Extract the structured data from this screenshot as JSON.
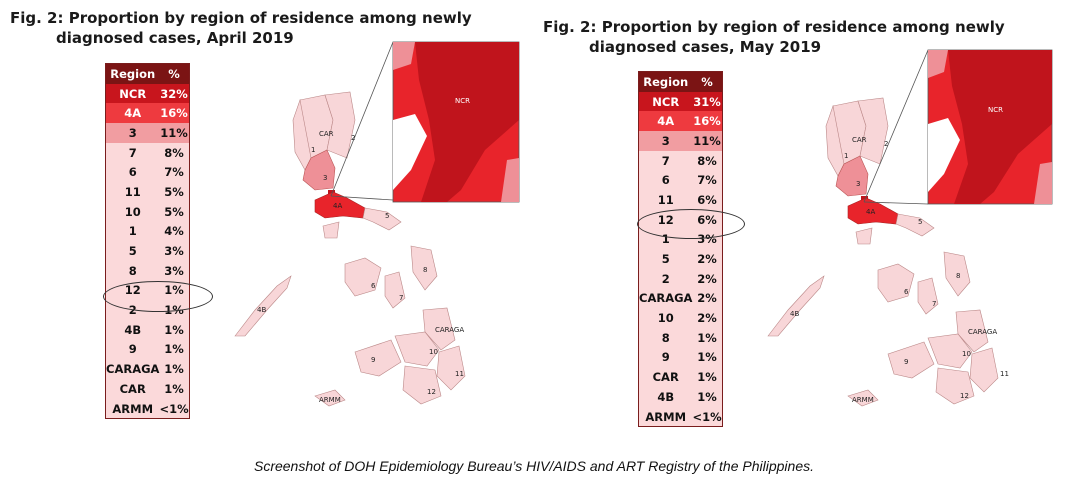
{
  "april": {
    "title_line1": "Fig. 2: Proportion by region of residence among newly",
    "title_line2": "diagnosed cases, April 2019",
    "col_region": "Region",
    "col_pct": "%",
    "rows": [
      {
        "region": "NCR",
        "pct": "32%"
      },
      {
        "region": "4A",
        "pct": "16%"
      },
      {
        "region": "3",
        "pct": "11%"
      },
      {
        "region": "7",
        "pct": "8%"
      },
      {
        "region": "6",
        "pct": "7%"
      },
      {
        "region": "11",
        "pct": "5%"
      },
      {
        "region": "10",
        "pct": "5%"
      },
      {
        "region": "1",
        "pct": "4%"
      },
      {
        "region": "5",
        "pct": "3%"
      },
      {
        "region": "8",
        "pct": "3%"
      },
      {
        "region": "12",
        "pct": "1%"
      },
      {
        "region": "2",
        "pct": "1%"
      },
      {
        "region": "4B",
        "pct": "1%"
      },
      {
        "region": "9",
        "pct": "1%"
      },
      {
        "region": "CARAGA",
        "pct": "1%"
      },
      {
        "region": "CAR",
        "pct": "1%"
      },
      {
        "region": "ARMM",
        "pct": "<1%"
      }
    ],
    "map_labels": {
      "car": "CAR",
      "r1": "1",
      "r2": "2",
      "r3": "3",
      "r4a": "4A",
      "r5": "5",
      "r8": "8",
      "r6": "6",
      "r7": "7",
      "r4b": "4B",
      "caraga": "CARAGA",
      "r10": "10",
      "r9": "9",
      "r11": "11",
      "r12": "12",
      "armm": "ARMM",
      "ncr": "NCR"
    }
  },
  "may": {
    "title_line1": "Fig. 2: Proportion by region of residence among newly",
    "title_line2": "diagnosed cases, May 2019",
    "col_region": "Region",
    "col_pct": "%",
    "rows": [
      {
        "region": "NCR",
        "pct": "31%"
      },
      {
        "region": "4A",
        "pct": "16%"
      },
      {
        "region": "3",
        "pct": "11%"
      },
      {
        "region": "7",
        "pct": "8%"
      },
      {
        "region": "6",
        "pct": "7%"
      },
      {
        "region": "11",
        "pct": "6%"
      },
      {
        "region": "12",
        "pct": "6%"
      },
      {
        "region": "1",
        "pct": "3%"
      },
      {
        "region": "5",
        "pct": "2%"
      },
      {
        "region": "2",
        "pct": "2%"
      },
      {
        "region": "CARAGA",
        "pct": "2%"
      },
      {
        "region": "10",
        "pct": "2%"
      },
      {
        "region": "8",
        "pct": "1%"
      },
      {
        "region": "9",
        "pct": "1%"
      },
      {
        "region": "CAR",
        "pct": "1%"
      },
      {
        "region": "4B",
        "pct": "1%"
      },
      {
        "region": "ARMM",
        "pct": "<1%"
      }
    ],
    "map_labels": {
      "car": "CAR",
      "r1": "1",
      "r2": "2",
      "r3": "3",
      "r4a": "4A",
      "r5": "5",
      "r8": "8",
      "r6": "6",
      "r7": "7",
      "r4b": "4B",
      "caraga": "CARAGA",
      "r10": "10",
      "r9": "9",
      "r11": "11",
      "r12": "12",
      "armm": "ARMM",
      "ncr": "NCR"
    }
  },
  "row_colors": [
    "#c8151d",
    "#ee3a3f",
    "#f19da1",
    "#fbd9da",
    "#fbd9da",
    "#fbd9da",
    "#fbd9da",
    "#fbd9da",
    "#fbd9da",
    "#fbd9da",
    "#fbd9da",
    "#fbd9da",
    "#fbd9da",
    "#fbd9da",
    "#fbd9da",
    "#fbd9da",
    "#fbd9da"
  ],
  "header_color": "#7b1414",
  "map_colors": {
    "light": "#f8d6d8",
    "mid": "#ee9097",
    "dark": "#c0141c",
    "bright": "#e8242b"
  },
  "caption": "Screenshot of DOH Epidemiology Bureau’s HIV/AIDS and ART Registry of the Philippines."
}
